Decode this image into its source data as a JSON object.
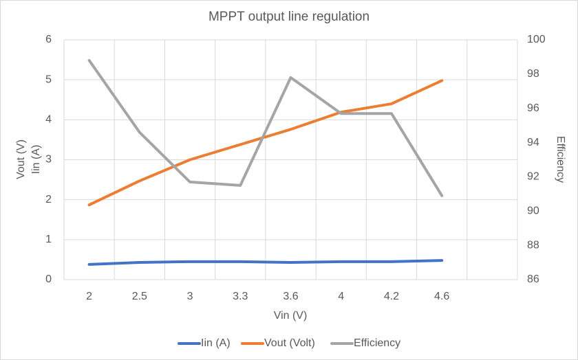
{
  "chart_data": {
    "type": "line",
    "title": "MPPT output line regulation",
    "xlabel": "Vin (V)",
    "ylabel": [
      "Vout (V)",
      "Iin (A)"
    ],
    "y2label": "Efficiency",
    "categories": [
      2,
      2.5,
      3,
      3.3,
      3.6,
      4,
      4.2,
      4.6,
      null
    ],
    "series": [
      {
        "name": "Iin (A)",
        "color": "#4472c4",
        "values": [
          0.38,
          0.43,
          0.45,
          0.45,
          0.43,
          0.45,
          0.45,
          0.48,
          null
        ]
      },
      {
        "name": "Vout (Volt)",
        "color": "#ed7d31",
        "values": [
          1.87,
          2.47,
          3.0,
          3.38,
          3.76,
          4.19,
          4.4,
          4.98,
          null
        ]
      },
      {
        "name": "Efficiency",
        "color": "#a5a5a5",
        "axis": "y2",
        "values": [
          98.8,
          94.6,
          91.7,
          91.5,
          97.8,
          95.7,
          95.7,
          90.9,
          null
        ]
      }
    ],
    "ylim": [
      0,
      6
    ],
    "yticks": [
      0,
      1,
      2,
      3,
      4,
      5,
      6
    ],
    "y2lim": [
      86,
      100
    ],
    "y2ticks": [
      86,
      88,
      90,
      92,
      94,
      96,
      98,
      100
    ],
    "grid": true,
    "legend": "bottom"
  }
}
